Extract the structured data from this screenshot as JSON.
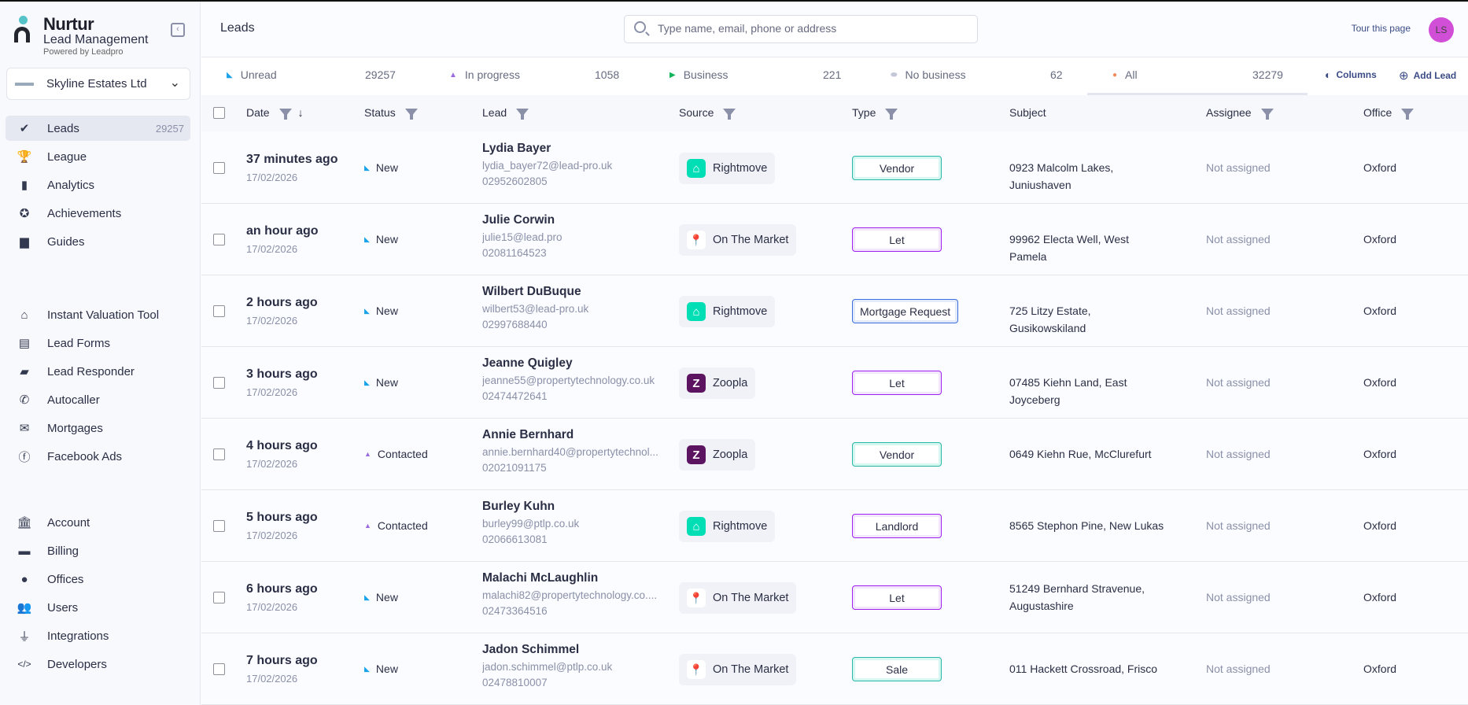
{
  "app": {
    "brand": "Nurtur",
    "subtitle": "Lead Management",
    "powered_by": "Powered by Leadpro"
  },
  "company": {
    "name": "Skyline Estates Ltd"
  },
  "sidebar": {
    "groups": [
      [
        {
          "label": "Leads",
          "icon": "check-circle-icon",
          "glyph": "✔",
          "count": "29257",
          "active": true
        },
        {
          "label": "League",
          "icon": "trophy-icon",
          "glyph": "🏆"
        },
        {
          "label": "Analytics",
          "icon": "bar-chart-icon",
          "glyph": "▮"
        },
        {
          "label": "Achievements",
          "icon": "medal-icon",
          "glyph": "✪"
        },
        {
          "label": "Guides",
          "icon": "book-icon",
          "glyph": "▆"
        }
      ],
      [
        {
          "label": "Instant Valuation Tool",
          "icon": "house-check-icon",
          "glyph": "⌂"
        },
        {
          "label": "Lead Forms",
          "icon": "form-icon",
          "glyph": "▤"
        },
        {
          "label": "Lead Responder",
          "icon": "chat-icon",
          "glyph": "▰"
        },
        {
          "label": "Autocaller",
          "icon": "phone-icon",
          "glyph": "✆"
        },
        {
          "label": "Mortgages",
          "icon": "envelope-icon",
          "glyph": "✉"
        },
        {
          "label": "Facebook Ads",
          "icon": "facebook-icon",
          "glyph": "ⓕ"
        }
      ],
      [
        {
          "label": "Account",
          "icon": "bank-icon",
          "glyph": "🏛"
        },
        {
          "label": "Billing",
          "icon": "card-icon",
          "glyph": "▬"
        },
        {
          "label": "Offices",
          "icon": "location-pin-icon",
          "glyph": "●"
        },
        {
          "label": "Users",
          "icon": "users-icon",
          "glyph": "👥"
        },
        {
          "label": "Integrations",
          "icon": "plug-icon",
          "glyph": "⏚"
        },
        {
          "label": "Developers",
          "icon": "code-icon",
          "glyph": "</>"
        }
      ]
    ]
  },
  "header": {
    "title": "Leads",
    "search_placeholder": "Type name, email, phone or address",
    "tour": "Tour this page",
    "avatar": "LS"
  },
  "tabs": [
    {
      "label": "Unread",
      "count": "29257",
      "color": "#1aa3e8",
      "glyph": "◣"
    },
    {
      "label": "In progress",
      "count": "1058",
      "color": "#9b6be0",
      "glyph": "▲"
    },
    {
      "label": "Business",
      "count": "221",
      "color": "#13b45a",
      "glyph": "▶"
    },
    {
      "label": "No business",
      "count": "62",
      "color": "#c4c8d8",
      "glyph": "⬬"
    },
    {
      "label": "All",
      "count": "32279",
      "color": "#f08a5d",
      "glyph": "●",
      "active": true
    }
  ],
  "actions": {
    "columns": "Columns",
    "add_lead": "Add Lead"
  },
  "columns": [
    "Date",
    "Status",
    "Lead",
    "Source",
    "Type",
    "Subject",
    "Assignee",
    "Office"
  ],
  "source_styles": {
    "Rightmove": {
      "bg": "#00deb6",
      "glyph": "⌂",
      "icon": "rightmove-icon"
    },
    "On The Market": {
      "bg": "#ffffff",
      "glyph": "📍",
      "icon": "onthemarket-icon"
    },
    "Zoopla": {
      "bg": "#5c1360",
      "glyph": "Z",
      "icon": "zoopla-icon"
    }
  },
  "type_colors": {
    "Vendor": "#2bb5a8",
    "Sale": "#2bb5a8",
    "Let": "#a020f0",
    "Landlord": "#a020f0",
    "Mortgage Request": "#3b6fe0"
  },
  "status_colors": {
    "New": "#1aa3e8",
    "Contacted": "#9b6be0"
  },
  "rows": [
    {
      "ago": "37 minutes ago",
      "date": "17/02/2026",
      "status": "New",
      "name": "Lydia Bayer",
      "email": "lydia_bayer72@lead-pro.uk",
      "phone": "02952602805",
      "source": "Rightmove",
      "type": "Vendor",
      "subject": "0923 Malcolm Lakes, Juniushaven",
      "assignee": "Not assigned",
      "office": "Oxford"
    },
    {
      "ago": "an hour ago",
      "date": "17/02/2026",
      "status": "New",
      "name": "Julie Corwin",
      "email": "julie15@lead.pro",
      "phone": "02081164523",
      "source": "On The Market",
      "type": "Let",
      "subject": "99962 Electa Well, West Pamela",
      "assignee": "Not assigned",
      "office": "Oxford"
    },
    {
      "ago": "2 hours ago",
      "date": "17/02/2026",
      "status": "New",
      "name": "Wilbert DuBuque",
      "email": "wilbert53@lead-pro.uk",
      "phone": "02997688440",
      "source": "Rightmove",
      "type": "Mortgage Request",
      "subject": "725 Litzy Estate, Gusikowskiland",
      "assignee": "Not assigned",
      "office": "Oxford"
    },
    {
      "ago": "3 hours ago",
      "date": "17/02/2026",
      "status": "New",
      "name": "Jeanne Quigley",
      "email": "jeanne55@propertytechnology.co.uk",
      "phone": "02474472641",
      "source": "Zoopla",
      "type": "Let",
      "subject": "07485 Kiehn Land, East Joyceberg",
      "assignee": "Not assigned",
      "office": "Oxford"
    },
    {
      "ago": "4 hours ago",
      "date": "17/02/2026",
      "status": "Contacted",
      "name": "Annie Bernhard",
      "email": "annie.bernhard40@propertytechnol...",
      "phone": "02021091175",
      "source": "Zoopla",
      "type": "Vendor",
      "subject": "0649 Kiehn Rue, McClurefurt",
      "assignee": "Not assigned",
      "office": "Oxford"
    },
    {
      "ago": "5 hours ago",
      "date": "17/02/2026",
      "status": "Contacted",
      "name": "Burley Kuhn",
      "email": "burley99@ptlp.co.uk",
      "phone": "02066613081",
      "source": "Rightmove",
      "type": "Landlord",
      "subject": "8565 Stephon Pine, New Lukas",
      "assignee": "Not assigned",
      "office": "Oxford"
    },
    {
      "ago": "6 hours ago",
      "date": "17/02/2026",
      "status": "New",
      "name": "Malachi McLaughlin",
      "email": "malachi82@propertytechnology.co....",
      "phone": "02473364516",
      "source": "On The Market",
      "type": "Let",
      "subject": "51249 Bernhard Stravenue, Augustashire",
      "assignee": "Not assigned",
      "office": "Oxford"
    },
    {
      "ago": "7 hours ago",
      "date": "17/02/2026",
      "status": "New",
      "name": "Jadon Schimmel",
      "email": "jadon.schimmel@ptlp.co.uk",
      "phone": "02478810007",
      "source": "On The Market",
      "type": "Sale",
      "subject": "011 Hackett Crossroad, Frisco",
      "assignee": "Not assigned",
      "office": "Oxford"
    }
  ]
}
